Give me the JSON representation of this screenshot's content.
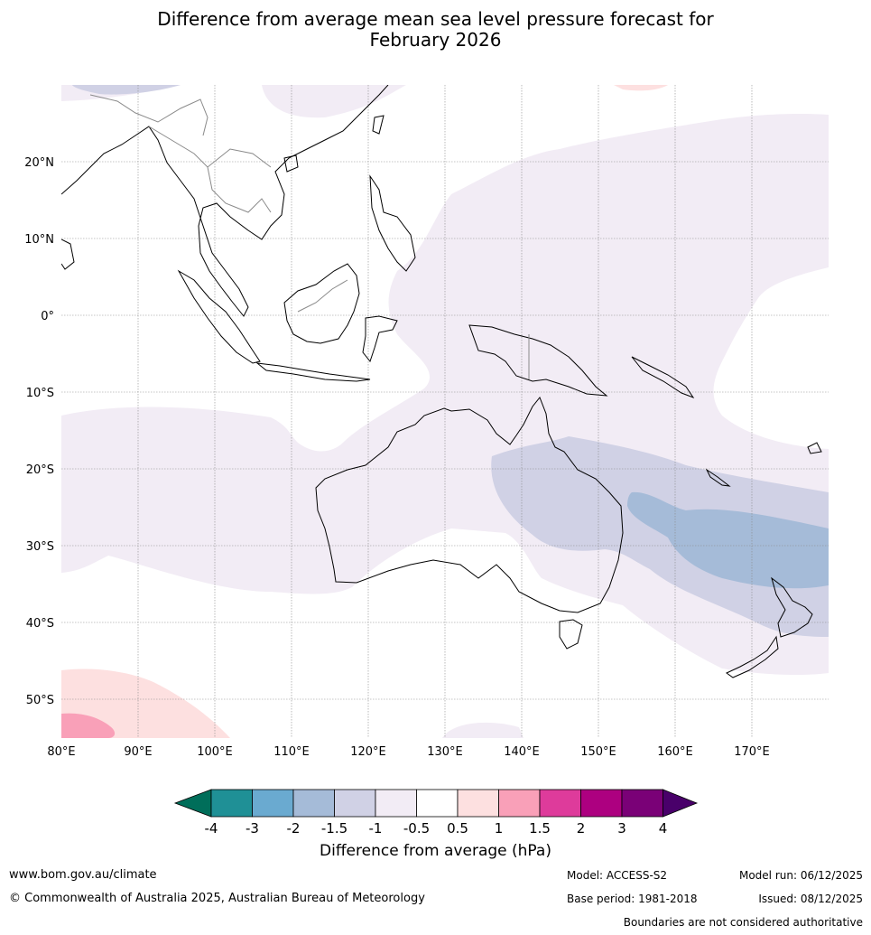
{
  "title": {
    "line1": "Difference from average mean sea level pressure forecast for",
    "line2": "February 2026"
  },
  "map": {
    "lon_ticks": [
      "80°E",
      "90°E",
      "100°E",
      "110°E",
      "120°E",
      "130°E",
      "140°E",
      "150°E",
      "160°E",
      "170°E"
    ],
    "lat_ticks": [
      "20°N",
      "10°N",
      "0°",
      "10°S",
      "20°S",
      "30°S",
      "40°S",
      "50°S"
    ],
    "lon_range": [
      80,
      180
    ],
    "lat_range": [
      -55,
      30
    ]
  },
  "colorbar": {
    "label": "Difference from average (hPa)",
    "levels": [
      "-4",
      "-3",
      "-2",
      "-1.5",
      "-1",
      "-0.5",
      "0.5",
      "1",
      "1.5",
      "2",
      "3",
      "4"
    ],
    "colors": [
      "#006e5a",
      "#1f9096",
      "#6aaad0",
      "#a5bbd8",
      "#d0d1e5",
      "#f2ecf5",
      "#ffffff",
      "#fde0e0",
      "#f9a0b8",
      "#de3b9b",
      "#ad0080",
      "#7a0177",
      "#49006a"
    ]
  },
  "footer": {
    "url": "www.bom.gov.au/climate",
    "copyright": "© Commonwealth of Australia 2025, Australian Bureau of Meteorology",
    "model": "Model: ACCESS-S2",
    "base_period": "Base period: 1981-2018",
    "model_run": "Model run: 06/12/2025",
    "issued": "Issued: 08/12/2025",
    "disclaimer": "Boundaries are not considered authoritative"
  }
}
